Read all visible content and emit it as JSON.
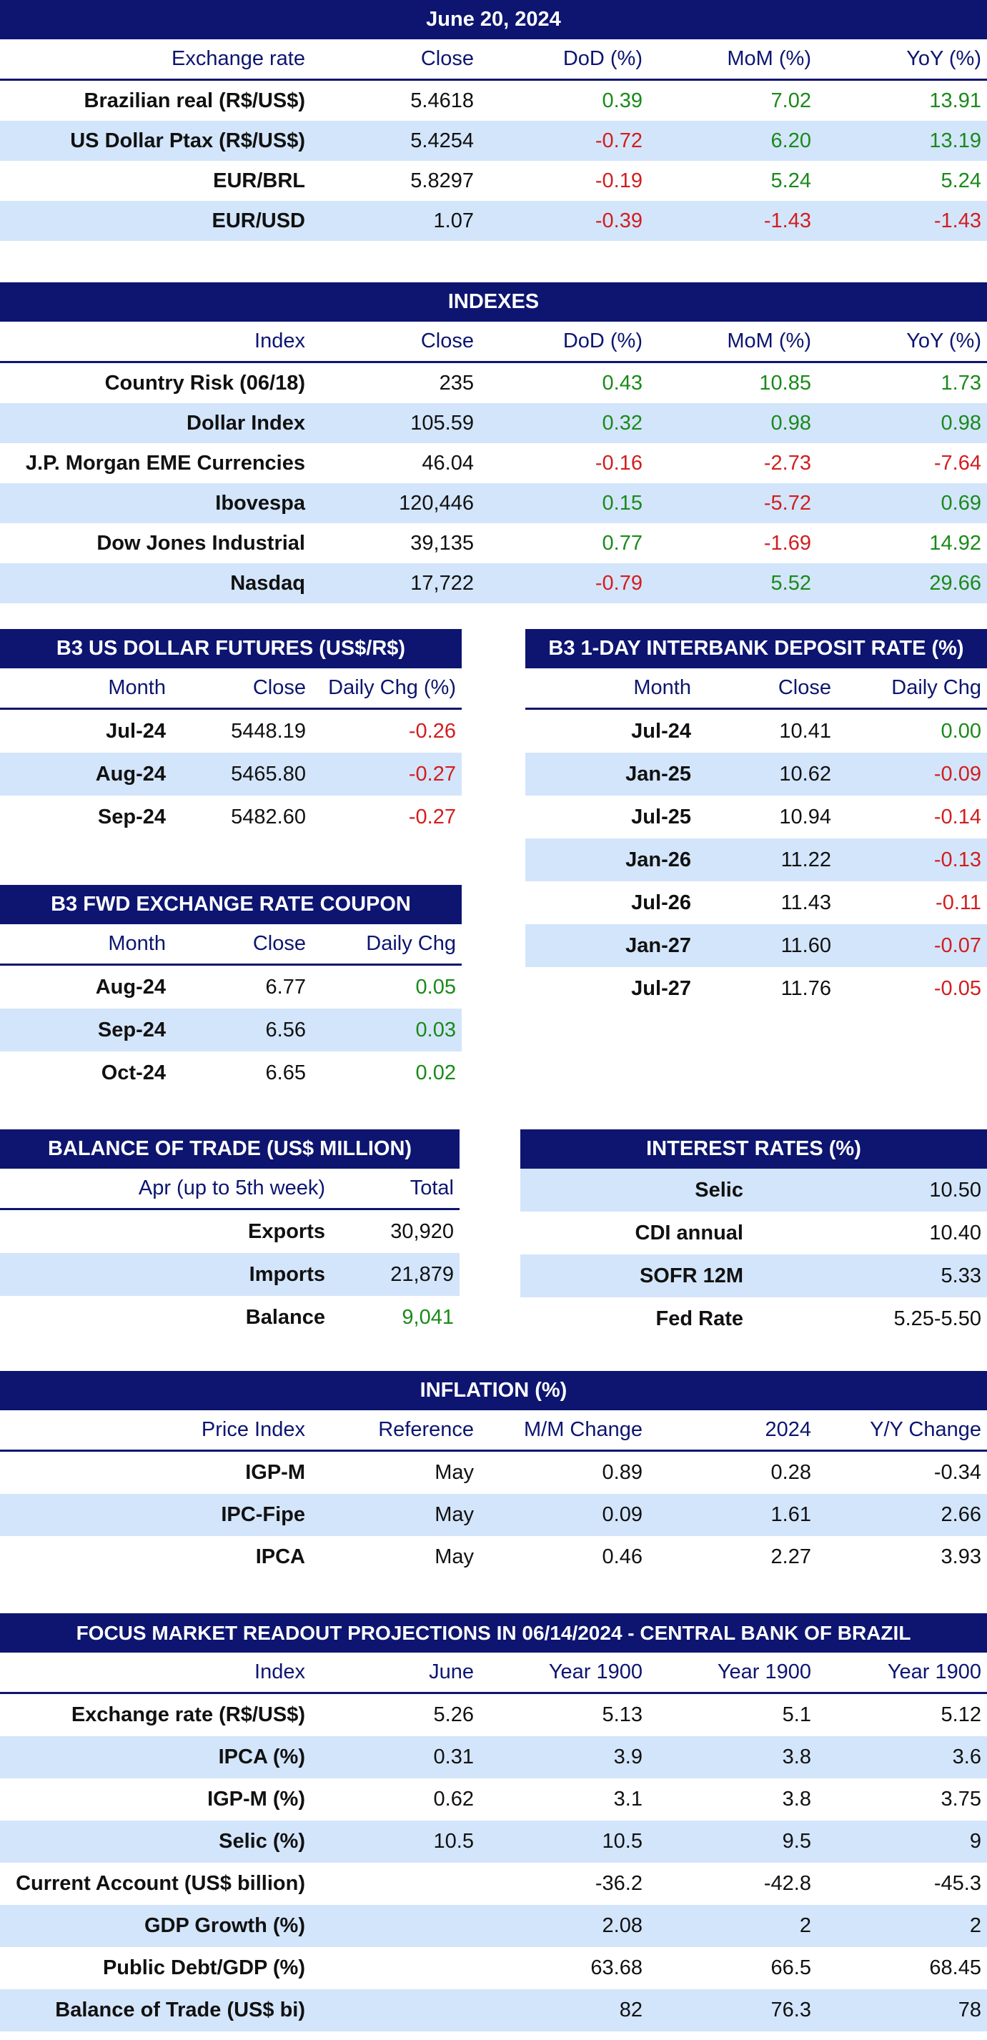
{
  "exchange": {
    "title": "June 20, 2024",
    "headers": [
      "Exchange rate",
      "Close",
      "DoD (%)",
      "MoM (%)",
      "YoY (%)"
    ],
    "rows": [
      {
        "label": "Brazilian real (R$/US$)",
        "close": "5.4618",
        "dod": "0.39",
        "mom": "7.02",
        "yoy": "13.91"
      },
      {
        "label": "US Dollar Ptax (R$/US$)",
        "close": "5.4254",
        "dod": "-0.72",
        "mom": "6.20",
        "yoy": "13.19"
      },
      {
        "label": "EUR/BRL",
        "close": "5.8297",
        "dod": "-0.19",
        "mom": "5.24",
        "yoy": "5.24"
      },
      {
        "label": "EUR/USD",
        "close": "1.07",
        "dod": "-0.39",
        "mom": "-1.43",
        "yoy": "-1.43"
      }
    ]
  },
  "indexes": {
    "title": "INDEXES",
    "headers": [
      "Index",
      "Close",
      "DoD (%)",
      "MoM (%)",
      "YoY (%)"
    ],
    "rows": [
      {
        "label": "Country Risk (06/18)",
        "close": "235",
        "dod": "0.43",
        "mom": "10.85",
        "yoy": "1.73"
      },
      {
        "label": "Dollar Index",
        "close": "105.59",
        "dod": "0.32",
        "mom": "0.98",
        "yoy": "0.98"
      },
      {
        "label": "J.P. Morgan EME Currencies",
        "close": "46.04",
        "dod": "-0.16",
        "mom": "-2.73",
        "yoy": "-7.64"
      },
      {
        "label": "Ibovespa",
        "close": "120,446",
        "dod": "0.15",
        "mom": "-5.72",
        "yoy": "0.69"
      },
      {
        "label": "Dow Jones Industrial",
        "close": "39,135",
        "dod": "0.77",
        "mom": "-1.69",
        "yoy": "14.92"
      },
      {
        "label": "Nasdaq",
        "close": "17,722",
        "dod": "-0.79",
        "mom": "5.52",
        "yoy": "29.66"
      }
    ]
  },
  "dollar_futures": {
    "title": "B3 US DOLLAR FUTURES (US$/R$)",
    "headers": [
      "Month",
      "Close",
      "Daily Chg (%)"
    ],
    "rows": [
      {
        "label": "Jul-24",
        "close": "5448.19",
        "chg": "-0.26"
      },
      {
        "label": "Aug-24",
        "close": "5465.80",
        "chg": "-0.27"
      },
      {
        "label": "Sep-24",
        "close": "5482.60",
        "chg": "-0.27"
      }
    ]
  },
  "interbank": {
    "title": "B3 1-DAY INTERBANK DEPOSIT RATE (%)",
    "headers": [
      "Month",
      "Close",
      "Daily Chg"
    ],
    "rows": [
      {
        "label": "Jul-24",
        "close": "10.41",
        "chg": "0.00"
      },
      {
        "label": "Jan-25",
        "close": "10.62",
        "chg": "-0.09"
      },
      {
        "label": "Jul-25",
        "close": "10.94",
        "chg": "-0.14"
      },
      {
        "label": "Jan-26",
        "close": "11.22",
        "chg": "-0.13"
      },
      {
        "label": "Jul-26",
        "close": "11.43",
        "chg": "-0.11"
      },
      {
        "label": "Jan-27",
        "close": "11.60",
        "chg": "-0.07"
      },
      {
        "label": "Jul-27",
        "close": "11.76",
        "chg": "-0.05"
      }
    ]
  },
  "fwd_coupon": {
    "title": "B3 FWD EXCHANGE RATE COUPON",
    "headers": [
      "Month",
      "Close",
      "Daily Chg"
    ],
    "rows": [
      {
        "label": "Aug-24",
        "close": "6.77",
        "chg": "0.05"
      },
      {
        "label": "Sep-24",
        "close": "6.56",
        "chg": "0.03"
      },
      {
        "label": "Oct-24",
        "close": "6.65",
        "chg": "0.02"
      }
    ]
  },
  "trade": {
    "title": "BALANCE OF TRADE (US$ MILLION)",
    "headers": [
      "Apr (up to 5th week)",
      "Total"
    ],
    "rows": [
      {
        "label": "Exports",
        "value": "30,920"
      },
      {
        "label": "Imports",
        "value": "21,879"
      },
      {
        "label": "Balance",
        "value": "9,041"
      }
    ]
  },
  "interest": {
    "title": "INTEREST RATES (%)",
    "rows": [
      {
        "label": "Selic",
        "value": "10.50"
      },
      {
        "label": "CDI annual",
        "value": "10.40"
      },
      {
        "label": "SOFR 12M",
        "value": "5.33"
      },
      {
        "label": "Fed Rate",
        "value": "5.25-5.50"
      }
    ]
  },
  "inflation": {
    "title": "INFLATION (%)",
    "headers": [
      "Price Index",
      "Reference",
      "M/M Change",
      "2024",
      "Y/Y Change"
    ],
    "rows": [
      {
        "label": "IGP-M",
        "ref": "May",
        "mm": "0.89",
        "ytd": "0.28",
        "yy": "-0.34"
      },
      {
        "label": "IPC-Fipe",
        "ref": "May",
        "mm": "0.09",
        "ytd": "1.61",
        "yy": "2.66"
      },
      {
        "label": "IPCA",
        "ref": "May",
        "mm": "0.46",
        "ytd": "2.27",
        "yy": "3.93"
      }
    ]
  },
  "focus": {
    "title": "FOCUS MARKET READOUT PROJECTIONS IN 06/14/2024 - CENTRAL BANK OF BRAZIL",
    "headers": [
      "Index",
      "June",
      "Year 1900",
      "Year 1900",
      "Year 1900"
    ],
    "rows": [
      {
        "label": "Exchange rate (R$/US$)",
        "month": "5.26",
        "y1": "5.13",
        "y2": "5.1",
        "y3": "5.12"
      },
      {
        "label": "IPCA (%)",
        "month": "0.31",
        "y1": "3.9",
        "y2": "3.8",
        "y3": "3.6"
      },
      {
        "label": "IGP-M (%)",
        "month": "0.62",
        "y1": "3.1",
        "y2": "3.8",
        "y3": "3.75"
      },
      {
        "label": "Selic (%)",
        "month": "10.5",
        "y1": "10.5",
        "y2": "9.5",
        "y3": "9"
      },
      {
        "label": "Current Account (US$ billion)",
        "month": "",
        "y1": "-36.2",
        "y2": "-42.8",
        "y3": "-45.3"
      },
      {
        "label": "GDP Growth (%)",
        "month": "",
        "y1": "2.08",
        "y2": "2",
        "y3": "2"
      },
      {
        "label": "Public Debt/GDP (%)",
        "month": "",
        "y1": "63.68",
        "y2": "66.5",
        "y3": "68.45"
      },
      {
        "label": "Balance of Trade (US$ bi)",
        "month": "",
        "y1": "82",
        "y2": "76.3",
        "y3": "78"
      }
    ]
  },
  "colors": {
    "header_bg": "#0d1570",
    "row_alt": "#d3e5fb",
    "positive": "#1a8a1a",
    "negative": "#d21e1e"
  }
}
